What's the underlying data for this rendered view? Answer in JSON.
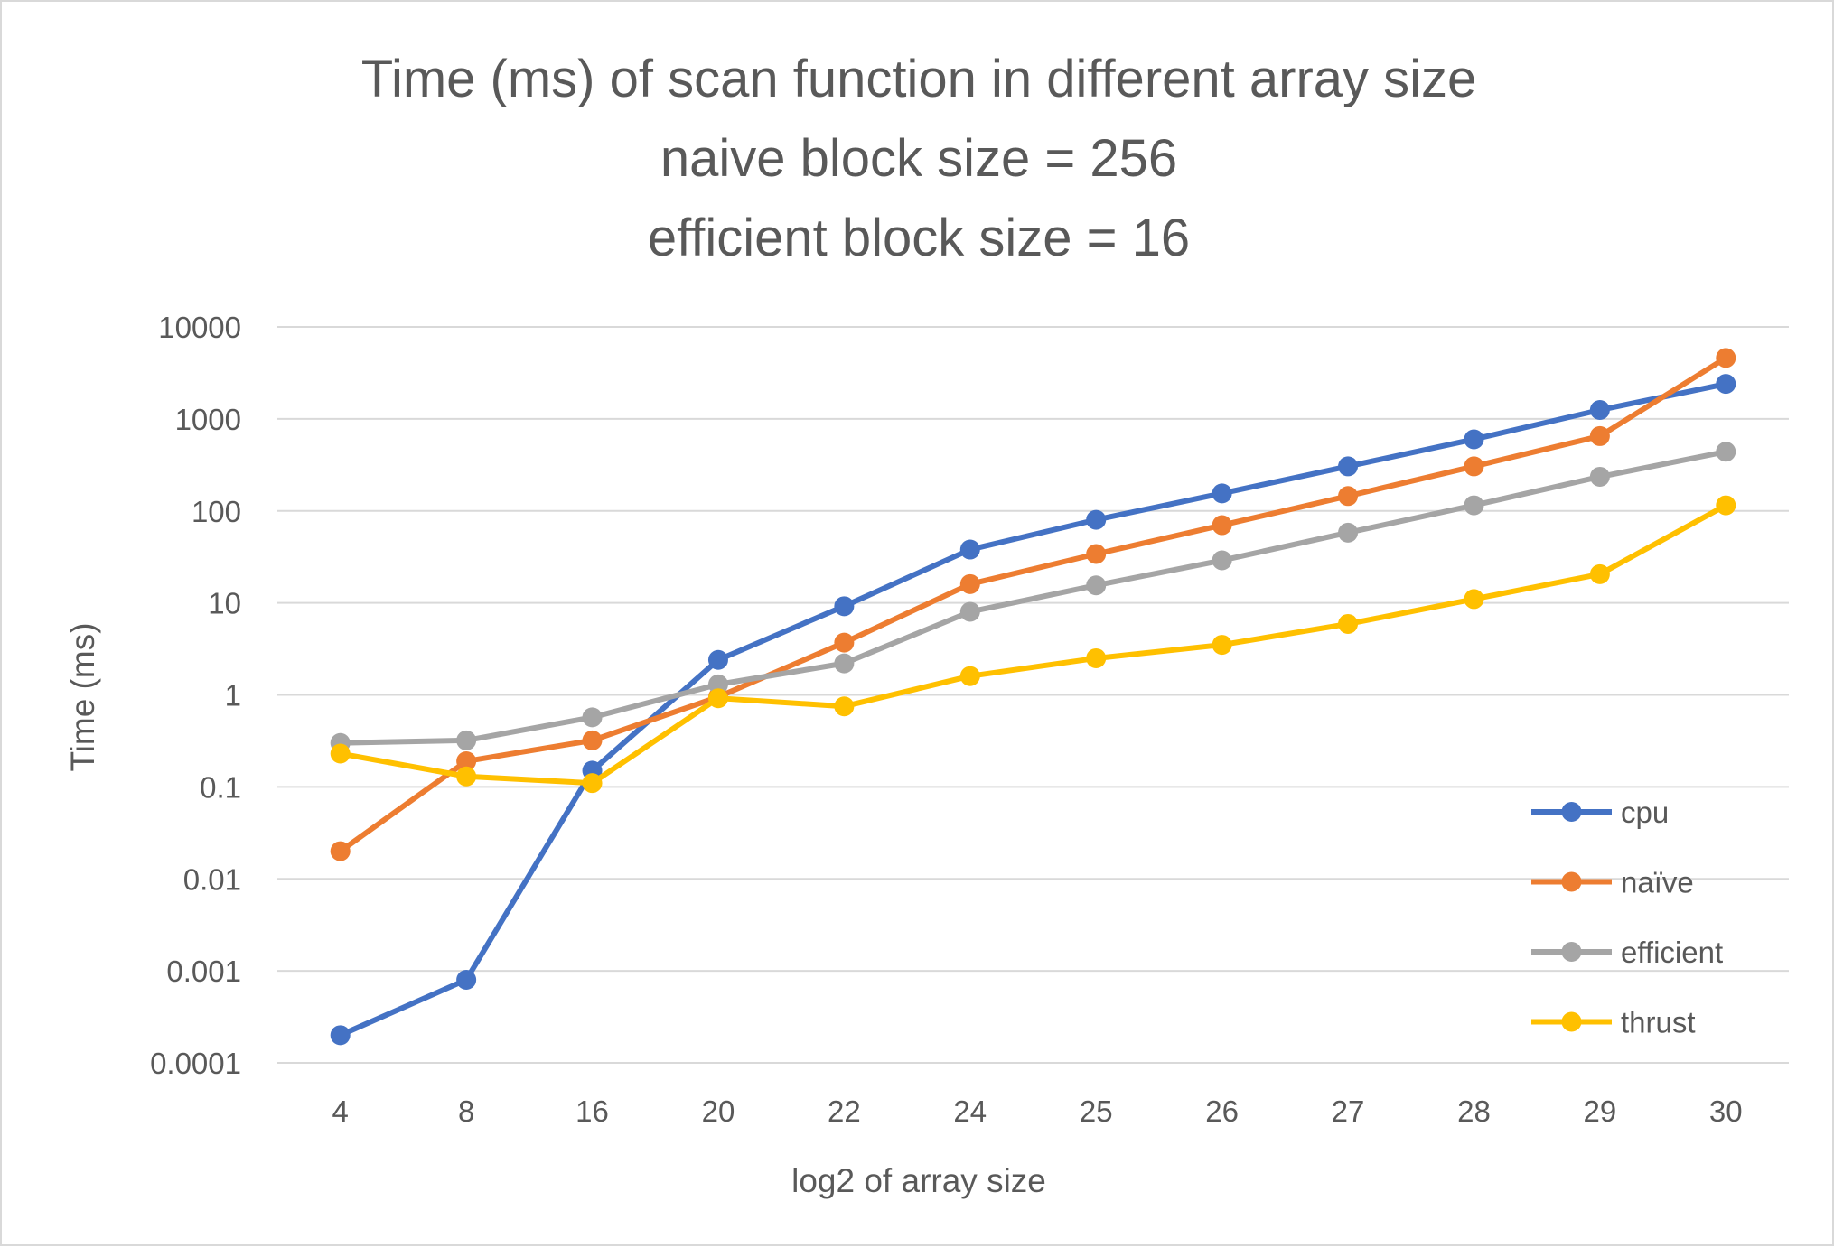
{
  "chart_data": {
    "type": "line",
    "title_lines": [
      "Time (ms) of scan function in different array size",
      "naive block size = 256",
      "efficient block size = 16"
    ],
    "xlabel": "log2 of array size",
    "ylabel": "Time (ms)",
    "y_scale": "log",
    "ylim": [
      0.0001,
      10000
    ],
    "y_ticks": [
      0.0001,
      0.001,
      0.01,
      0.1,
      1,
      10,
      100,
      1000,
      10000
    ],
    "y_tick_labels": [
      "0.0001",
      "0.001",
      "0.01",
      "0.1",
      "1",
      "10",
      "100",
      "1000",
      "10000"
    ],
    "categories": [
      "4",
      "8",
      "16",
      "20",
      "22",
      "24",
      "25",
      "26",
      "27",
      "28",
      "29",
      "30"
    ],
    "grid": "horizontal",
    "legend_position": "bottom-right",
    "series": [
      {
        "name": "cpu",
        "color": "#4472c4",
        "values": [
          0.0002,
          0.0008,
          0.15,
          2.4,
          9.2,
          38,
          80,
          155,
          305,
          600,
          1250,
          2400
        ]
      },
      {
        "name": "naïve",
        "color": "#ed7d31",
        "values": [
          0.02,
          0.19,
          0.32,
          0.95,
          3.7,
          16,
          34,
          70,
          145,
          305,
          650,
          4600
        ]
      },
      {
        "name": "efficient",
        "color": "#a5a5a5",
        "values": [
          0.3,
          0.32,
          0.57,
          1.3,
          2.2,
          8,
          15.5,
          29,
          58,
          115,
          235,
          440
        ]
      },
      {
        "name": "thrust",
        "color": "#ffc000",
        "values": [
          0.23,
          0.13,
          0.11,
          0.92,
          0.75,
          1.6,
          2.5,
          3.5,
          5.9,
          11,
          20.5,
          115
        ]
      }
    ]
  }
}
